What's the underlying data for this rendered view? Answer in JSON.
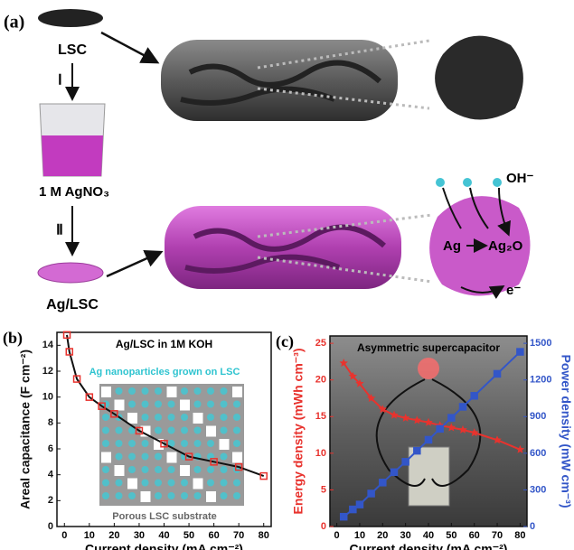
{
  "panel_a": {
    "label": "(a)",
    "lsc": "LSC",
    "step1": "Ⅰ",
    "solution": "1 M AgNO₃",
    "step2": "Ⅱ",
    "product": "Ag/LSC",
    "oh": "OH⁻",
    "ag": "Ag",
    "ag2o": "Ag₂O",
    "electron": "e⁻"
  },
  "chart_data": [
    {
      "type": "line",
      "panel_label": "(b)",
      "title": "Ag/LSC in 1M KOH",
      "annotations": [
        "Ag nanoparticles grown on LSC",
        "Porous LSC substrate"
      ],
      "xlabel": "Current density (mA cm⁻²)",
      "ylabel": "Areal capacitance (F cm⁻²)",
      "x": [
        1,
        2,
        5,
        10,
        15,
        20,
        30,
        40,
        50,
        60,
        70,
        80
      ],
      "series": [
        {
          "name": null,
          "color": "#e8332e",
          "marker": "square",
          "line_color": "#111111",
          "values": [
            14.8,
            13.5,
            11.4,
            10.0,
            9.3,
            8.7,
            7.4,
            6.4,
            5.4,
            5.0,
            4.6,
            3.9
          ]
        }
      ],
      "xlim": [
        -3,
        83
      ],
      "xticks": [
        0,
        10,
        20,
        30,
        40,
        50,
        60,
        70,
        80
      ],
      "ylim": [
        0,
        15
      ],
      "yticks": [
        0,
        2,
        4,
        6,
        8,
        10,
        12,
        14
      ],
      "y_axis_color": "#111111"
    },
    {
      "type": "line",
      "panel_label": "(c)",
      "title": "Asymmetric supercapacitor",
      "xlabel": "Current density (mA cm⁻²)",
      "ylabel": "Energy density (mWh cm⁻³)",
      "y2label": "Power density (mW cm⁻³)",
      "x": [
        3,
        7,
        10,
        15,
        20,
        25,
        30,
        35,
        40,
        45,
        50,
        55,
        60,
        70,
        80
      ],
      "series": [
        {
          "name": null,
          "color": "#e8332e",
          "marker": "star",
          "line_color": "#e8332e",
          "values": [
            22.3,
            20.5,
            19.5,
            17.5,
            16.0,
            15.2,
            14.8,
            14.5,
            14.2,
            13.8,
            13.5,
            13.2,
            12.8,
            11.8,
            10.5
          ]
        },
        {
          "name": null,
          "color": "#3356c8",
          "marker": "square",
          "line_color": "#3356c8",
          "axis": "y2",
          "values": [
            80,
            140,
            180,
            270,
            360,
            445,
            530,
            620,
            710,
            800,
            890,
            980,
            1070,
            1250,
            1430
          ]
        }
      ],
      "xlim": [
        -3,
        83
      ],
      "xticks": [
        0,
        10,
        20,
        30,
        40,
        50,
        60,
        70,
        80
      ],
      "ylim": [
        0,
        26
      ],
      "yticks": [
        0,
        5,
        10,
        15,
        20,
        25
      ],
      "y2lim": [
        0,
        1560
      ],
      "y2ticks": [
        0,
        300,
        600,
        900,
        1200,
        1500
      ],
      "y_axis_color": "#e8332e",
      "y2_axis_color": "#3356c8"
    }
  ]
}
